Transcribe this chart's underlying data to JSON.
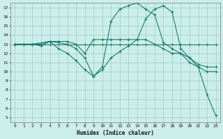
{
  "xlabel": "Humidex (Indice chaleur)",
  "background_color": "#cceee8",
  "grid_color": "#99cccc",
  "line_color": "#1a7a6e",
  "xlim": [
    -0.5,
    23.5
  ],
  "ylim": [
    4.5,
    17.5
  ],
  "xticks": [
    0,
    1,
    2,
    3,
    4,
    5,
    6,
    7,
    8,
    9,
    10,
    11,
    12,
    13,
    14,
    15,
    16,
    17,
    18,
    19,
    20,
    21,
    22,
    23
  ],
  "yticks": [
    5,
    6,
    7,
    8,
    9,
    10,
    11,
    12,
    13,
    14,
    15,
    16,
    17
  ],
  "lines": [
    {
      "x": [
        0,
        1,
        2,
        3,
        4,
        5,
        6,
        7,
        8,
        9,
        10,
        11,
        12,
        13,
        14,
        15,
        16,
        17,
        18,
        19,
        20,
        21,
        22,
        23
      ],
      "y": [
        13,
        13,
        13,
        13,
        13.3,
        13.3,
        13.3,
        13.0,
        12.0,
        13.5,
        13.5,
        13.5,
        13.5,
        13.5,
        13.5,
        13.5,
        13.0,
        12.5,
        12.0,
        12.0,
        11.0,
        10.5,
        10.0,
        10.0
      ]
    },
    {
      "x": [
        0,
        2,
        4,
        6,
        7,
        8,
        9,
        10,
        11,
        12,
        13,
        14,
        15,
        16,
        17,
        18,
        19,
        20,
        21,
        22,
        23
      ],
      "y": [
        13,
        13,
        13.3,
        13,
        12.5,
        11.5,
        9.5,
        10.5,
        15.5,
        16.8,
        17.2,
        17.5,
        16.8,
        16.2,
        13.2,
        12.5,
        12.0,
        11.5,
        10.8,
        10.5,
        10.5
      ]
    },
    {
      "x": [
        0,
        1,
        2,
        3,
        4,
        5,
        6,
        7,
        8,
        9,
        10,
        11,
        12,
        13,
        14,
        15,
        16,
        17,
        18,
        19,
        20,
        21,
        22,
        23
      ],
      "y": [
        13,
        13,
        13,
        12.8,
        13.3,
        12.5,
        12,
        11.2,
        10.2,
        9.5,
        10.2,
        11.5,
        12.2,
        12.8,
        13.5,
        15.8,
        16.8,
        17.2,
        16.5,
        12.5,
        11.5,
        10.5,
        7.5,
        5.2
      ]
    },
    {
      "x": [
        0,
        1,
        2,
        3,
        4,
        5,
        6,
        7,
        8,
        9,
        10,
        11,
        12,
        13,
        14,
        15,
        16,
        17,
        18,
        19,
        20,
        21,
        22,
        23
      ],
      "y": [
        13,
        13,
        13,
        13,
        13,
        13,
        13,
        13,
        13,
        13,
        13,
        13,
        13,
        13,
        13,
        13,
        13,
        13,
        13,
        13,
        13,
        13,
        13,
        13
      ]
    }
  ]
}
